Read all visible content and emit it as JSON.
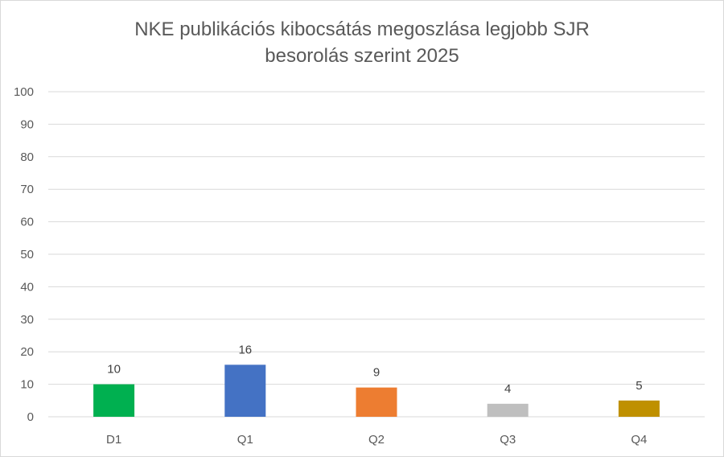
{
  "chart_data": {
    "type": "bar",
    "title_line1": "NKE publikációs kibocsátás megoszlása legjobb SJR",
    "title_line2": "besorolás szerint 2025",
    "categories": [
      "D1",
      "Q1",
      "Q2",
      "Q3",
      "Q4"
    ],
    "values": [
      10,
      16,
      9,
      4,
      5
    ],
    "data_labels": [
      "10",
      "16",
      "9",
      "4",
      "5"
    ],
    "colors": [
      "#00b050",
      "#4472c4",
      "#ed7d31",
      "#bfbfbf",
      "#bf9000"
    ],
    "ylim": [
      0,
      100
    ],
    "yticks": [
      0,
      10,
      20,
      30,
      40,
      50,
      60,
      70,
      80,
      90,
      100
    ],
    "grid": true,
    "legend": "none"
  }
}
